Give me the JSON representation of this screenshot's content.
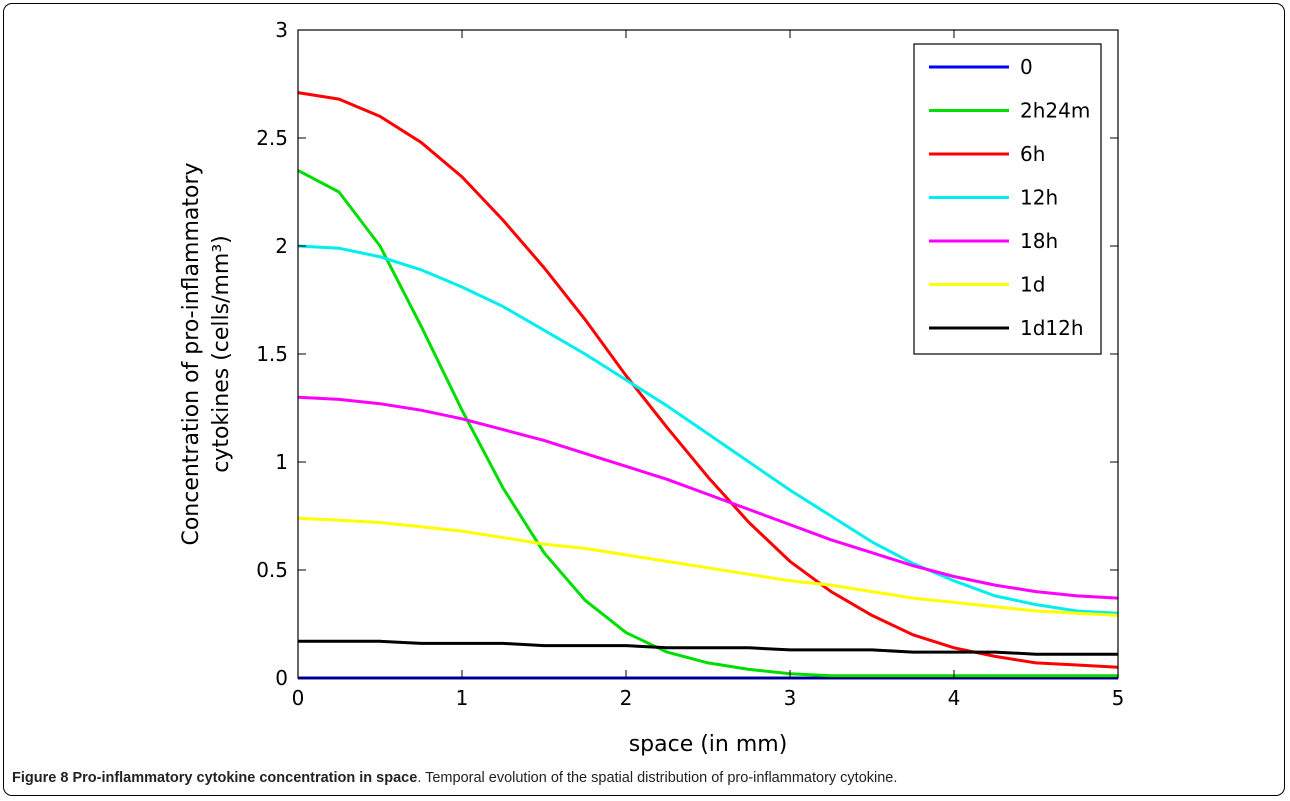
{
  "caption": {
    "figure_label": "Figure 8",
    "figure_title": "Pro-inflammatory cytokine concentration in space",
    "text": ". Temporal evolution of the spatial distribution of pro-inflammatory cytokine."
  },
  "chart_data": {
    "type": "line",
    "title": "",
    "xlabel": "space (in mm)",
    "ylabel_lines": [
      "Concentration of pro-inflammatory",
      "cytokines (cells/mm³)"
    ],
    "xlim": [
      0,
      5
    ],
    "ylim": [
      0,
      3
    ],
    "xticks": [
      0,
      1,
      2,
      3,
      4,
      5
    ],
    "yticks": [
      0,
      0.5,
      1,
      1.5,
      2,
      2.5,
      3
    ],
    "ytick_labels": [
      "0",
      "0.5",
      "1",
      "1.5",
      "2",
      "2.5",
      "3"
    ],
    "grid": false,
    "legend_position": "top-right",
    "x": [
      0,
      0.25,
      0.5,
      0.75,
      1,
      1.25,
      1.5,
      1.75,
      2,
      2.25,
      2.5,
      2.75,
      3,
      3.25,
      3.5,
      3.75,
      4,
      4.25,
      4.5,
      4.75,
      5
    ],
    "series": [
      {
        "name": "0",
        "color": "#0000ff",
        "values": [
          0,
          0,
          0,
          0,
          0,
          0,
          0,
          0,
          0,
          0,
          0,
          0,
          0,
          0,
          0,
          0,
          0,
          0,
          0,
          0,
          0
        ]
      },
      {
        "name": "2h24m",
        "color": "#00dd00",
        "values": [
          2.35,
          2.25,
          2.0,
          1.63,
          1.24,
          0.88,
          0.58,
          0.36,
          0.21,
          0.12,
          0.07,
          0.04,
          0.02,
          0.01,
          0.01,
          0.01,
          0.01,
          0.01,
          0.01,
          0.01,
          0.01
        ]
      },
      {
        "name": "6h",
        "color": "#ff0000",
        "values": [
          2.71,
          2.68,
          2.6,
          2.48,
          2.32,
          2.12,
          1.9,
          1.66,
          1.4,
          1.16,
          0.93,
          0.72,
          0.54,
          0.4,
          0.29,
          0.2,
          0.14,
          0.1,
          0.07,
          0.06,
          0.05
        ]
      },
      {
        "name": "12h",
        "color": "#00eeee",
        "values": [
          2.0,
          1.99,
          1.95,
          1.89,
          1.81,
          1.72,
          1.61,
          1.5,
          1.38,
          1.26,
          1.13,
          1.0,
          0.87,
          0.75,
          0.63,
          0.53,
          0.45,
          0.38,
          0.34,
          0.31,
          0.3
        ]
      },
      {
        "name": "18h",
        "color": "#ff00ff",
        "values": [
          1.3,
          1.29,
          1.27,
          1.24,
          1.2,
          1.15,
          1.1,
          1.04,
          0.98,
          0.92,
          0.85,
          0.78,
          0.71,
          0.64,
          0.58,
          0.52,
          0.47,
          0.43,
          0.4,
          0.38,
          0.37
        ]
      },
      {
        "name": "1d",
        "color": "#ffff00",
        "values": [
          0.74,
          0.73,
          0.72,
          0.7,
          0.68,
          0.65,
          0.62,
          0.6,
          0.57,
          0.54,
          0.51,
          0.48,
          0.45,
          0.43,
          0.4,
          0.37,
          0.35,
          0.33,
          0.31,
          0.3,
          0.29
        ]
      },
      {
        "name": "1d12h",
        "color": "#000000",
        "values": [
          0.17,
          0.17,
          0.17,
          0.16,
          0.16,
          0.16,
          0.15,
          0.15,
          0.15,
          0.14,
          0.14,
          0.14,
          0.13,
          0.13,
          0.13,
          0.12,
          0.12,
          0.12,
          0.11,
          0.11,
          0.11
        ]
      }
    ]
  }
}
